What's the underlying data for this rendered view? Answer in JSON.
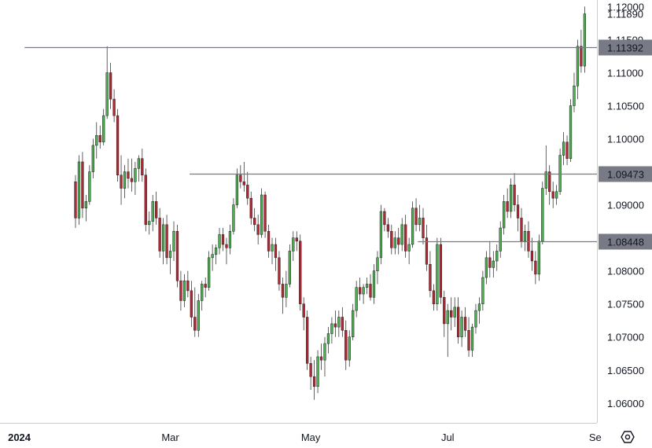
{
  "chart_data": {
    "type": "candlestick",
    "ylim": [
      1.057,
      1.121
    ],
    "xlim": [
      0,
      170
    ],
    "y_ticks": [
      "1.12000",
      "1.11500",
      "1.11000",
      "1.10500",
      "1.10000",
      "1.09500",
      "1.09000",
      "1.08500",
      "1.08000",
      "1.07500",
      "1.07000",
      "1.06500",
      "1.06000"
    ],
    "x_ticks": [
      {
        "label": "2024",
        "x": 8,
        "bold": true
      },
      {
        "label": "Mar",
        "x": 51,
        "bold": false
      },
      {
        "label": "May",
        "x": 91,
        "bold": false
      },
      {
        "label": "Jul",
        "x": 130,
        "bold": false
      },
      {
        "label": "Se",
        "x": 172,
        "bold": false
      }
    ],
    "last_price": "1.11890",
    "levels": [
      {
        "label": "1.11392",
        "value": 1.11392,
        "x_start": 7
      },
      {
        "label": "1.09473",
        "value": 1.09473,
        "x_start": 54
      },
      {
        "label": "1.08448",
        "value": 1.08448,
        "x_start": 119
      }
    ],
    "colors": {
      "up": "#4caf50",
      "down": "#b22833",
      "level_line": "#787b86",
      "label_bg": "#787b86"
    },
    "candles": [
      [
        1.0935,
        1.0945,
        1.0865,
        1.088
      ],
      [
        1.088,
        1.0975,
        1.087,
        1.0965
      ],
      [
        1.0965,
        1.098,
        1.088,
        1.0895
      ],
      [
        1.0895,
        1.0915,
        1.0875,
        1.0905
      ],
      [
        1.0905,
        1.096,
        1.09,
        1.095
      ],
      [
        1.095,
        1.1,
        1.094,
        1.099
      ],
      [
        1.099,
        1.1025,
        1.097,
        1.1005
      ],
      [
        1.1005,
        1.102,
        1.0985,
        1.0995
      ],
      [
        1.0995,
        1.1045,
        1.099,
        1.1035
      ],
      [
        1.1035,
        1.114,
        1.103,
        1.11
      ],
      [
        1.11,
        1.1115,
        1.1045,
        1.106
      ],
      [
        1.106,
        1.1075,
        1.1025,
        1.1035
      ],
      [
        1.1035,
        1.1045,
        1.0935,
        1.0945
      ],
      [
        1.0945,
        1.0975,
        1.09,
        1.0925
      ],
      [
        1.0925,
        1.096,
        1.091,
        1.095
      ],
      [
        1.095,
        1.097,
        1.0925,
        1.094
      ],
      [
        1.094,
        1.097,
        1.092,
        1.0935
      ],
      [
        1.0935,
        1.0965,
        1.0915,
        1.0955
      ],
      [
        1.0955,
        1.0975,
        1.0935,
        1.097
      ],
      [
        1.097,
        1.0985,
        1.0935,
        1.0945
      ],
      [
        1.0945,
        1.0955,
        1.086,
        1.087
      ],
      [
        1.087,
        1.089,
        1.0855,
        1.0875
      ],
      [
        1.0875,
        1.0915,
        1.086,
        1.0905
      ],
      [
        1.0905,
        1.092,
        1.087,
        1.088
      ],
      [
        1.088,
        1.0895,
        1.082,
        1.083
      ],
      [
        1.083,
        1.088,
        1.081,
        1.087
      ],
      [
        1.087,
        1.0885,
        1.081,
        1.082
      ],
      [
        1.082,
        1.084,
        1.0795,
        1.083
      ],
      [
        1.083,
        1.0875,
        1.0815,
        1.086
      ],
      [
        1.086,
        1.087,
        1.0775,
        1.0785
      ],
      [
        1.0785,
        1.08,
        1.074,
        1.0755
      ],
      [
        1.0755,
        1.0795,
        1.0745,
        1.0785
      ],
      [
        1.0785,
        1.08,
        1.076,
        1.077
      ],
      [
        1.077,
        1.0785,
        1.0715,
        1.073
      ],
      [
        1.073,
        1.0775,
        1.07,
        1.071
      ],
      [
        1.071,
        1.0765,
        1.07,
        1.0755
      ],
      [
        1.0755,
        1.0785,
        1.074,
        1.078
      ],
      [
        1.078,
        1.079,
        1.076,
        1.0775
      ],
      [
        1.0775,
        1.083,
        1.077,
        1.082
      ],
      [
        1.082,
        1.084,
        1.08,
        1.0825
      ],
      [
        1.0825,
        1.084,
        1.081,
        1.0835
      ],
      [
        1.0835,
        1.0865,
        1.0825,
        1.0855
      ],
      [
        1.0855,
        1.0865,
        1.083,
        1.084
      ],
      [
        1.084,
        1.085,
        1.081,
        1.0835
      ],
      [
        1.0835,
        1.087,
        1.0825,
        1.086
      ],
      [
        1.086,
        1.091,
        1.0855,
        1.09
      ],
      [
        1.09,
        1.0955,
        1.0895,
        1.0945
      ],
      [
        1.0945,
        1.096,
        1.0925,
        1.0935
      ],
      [
        1.0935,
        1.0965,
        1.092,
        1.093
      ],
      [
        1.093,
        1.095,
        1.09,
        1.091
      ],
      [
        1.091,
        1.092,
        1.087,
        1.088
      ],
      [
        1.088,
        1.0895,
        1.086,
        1.087
      ],
      [
        1.087,
        1.0885,
        1.084,
        1.0855
      ],
      [
        1.0855,
        1.0925,
        1.085,
        1.0915
      ],
      [
        1.0915,
        1.092,
        1.085,
        1.086
      ],
      [
        1.086,
        1.087,
        1.082,
        1.083
      ],
      [
        1.083,
        1.085,
        1.081,
        1.084
      ],
      [
        1.084,
        1.085,
        1.08,
        1.082
      ],
      [
        1.082,
        1.083,
        1.077,
        1.078
      ],
      [
        1.078,
        1.079,
        1.0735,
        1.076
      ],
      [
        1.076,
        1.08,
        1.0745,
        1.078
      ],
      [
        1.078,
        1.084,
        1.0775,
        1.083
      ],
      [
        1.083,
        1.086,
        1.0815,
        1.085
      ],
      [
        1.085,
        1.086,
        1.083,
        1.0845
      ],
      [
        1.0845,
        1.0855,
        1.074,
        1.075
      ],
      [
        1.075,
        1.076,
        1.071,
        1.073
      ],
      [
        1.073,
        1.074,
        1.065,
        1.066
      ],
      [
        1.066,
        1.067,
        1.062,
        1.064
      ],
      [
        1.064,
        1.0665,
        1.0605,
        1.0625
      ],
      [
        1.0625,
        1.068,
        1.0615,
        1.067
      ],
      [
        1.067,
        1.069,
        1.065,
        1.0665
      ],
      [
        1.0665,
        1.07,
        1.064,
        1.069
      ],
      [
        1.069,
        1.0715,
        1.0675,
        1.0705
      ],
      [
        1.0705,
        1.073,
        1.069,
        1.072
      ],
      [
        1.072,
        1.074,
        1.07,
        1.0715
      ],
      [
        1.0715,
        1.074,
        1.07,
        1.073
      ],
      [
        1.073,
        1.0745,
        1.07,
        1.071
      ],
      [
        1.071,
        1.0725,
        1.065,
        1.0665
      ],
      [
        1.0665,
        1.071,
        1.0655,
        1.07
      ],
      [
        1.07,
        1.075,
        1.0695,
        1.074
      ],
      [
        1.074,
        1.0785,
        1.073,
        1.0775
      ],
      [
        1.0775,
        1.079,
        1.0755,
        1.0765
      ],
      [
        1.0765,
        1.078,
        1.075,
        1.0775
      ],
      [
        1.0775,
        1.079,
        1.0765,
        1.078
      ],
      [
        1.078,
        1.0795,
        1.0755,
        1.076
      ],
      [
        1.076,
        1.081,
        1.075,
        1.08
      ],
      [
        1.08,
        1.083,
        1.078,
        1.082
      ],
      [
        1.082,
        1.09,
        1.081,
        1.089
      ],
      [
        1.089,
        1.0895,
        1.086,
        1.087
      ],
      [
        1.087,
        1.088,
        1.085,
        1.086
      ],
      [
        1.086,
        1.087,
        1.0825,
        1.0835
      ],
      [
        1.0835,
        1.086,
        1.0825,
        1.085
      ],
      [
        1.085,
        1.0865,
        1.0825,
        1.084
      ],
      [
        1.084,
        1.088,
        1.083,
        1.087
      ],
      [
        1.087,
        1.0885,
        1.082,
        1.083
      ],
      [
        1.083,
        1.085,
        1.081,
        1.084
      ],
      [
        1.084,
        1.0905,
        1.0835,
        1.0895
      ],
      [
        1.0895,
        1.091,
        1.086,
        1.087
      ],
      [
        1.087,
        1.09,
        1.086,
        1.088
      ],
      [
        1.088,
        1.0895,
        1.084,
        1.085
      ],
      [
        1.085,
        1.087,
        1.08,
        1.081
      ],
      [
        1.081,
        1.083,
        1.076,
        1.077
      ],
      [
        1.077,
        1.078,
        1.074,
        1.075
      ],
      [
        1.075,
        1.085,
        1.074,
        1.084
      ],
      [
        1.084,
        1.085,
        1.075,
        1.076
      ],
      [
        1.076,
        1.077,
        1.07,
        1.072
      ],
      [
        1.072,
        1.075,
        1.067,
        1.074
      ],
      [
        1.074,
        1.076,
        1.071,
        1.073
      ],
      [
        1.073,
        1.076,
        1.0715,
        1.0745
      ],
      [
        1.0745,
        1.076,
        1.069,
        1.07
      ],
      [
        1.07,
        1.074,
        1.0685,
        1.073
      ],
      [
        1.073,
        1.0745,
        1.07,
        1.071
      ],
      [
        1.071,
        1.073,
        1.067,
        1.068
      ],
      [
        1.068,
        1.072,
        1.067,
        1.0715
      ],
      [
        1.0715,
        1.075,
        1.0705,
        1.074
      ],
      [
        1.074,
        1.076,
        1.072,
        1.075
      ],
      [
        1.075,
        1.08,
        1.074,
        1.079
      ],
      [
        1.079,
        1.083,
        1.078,
        1.082
      ],
      [
        1.082,
        1.0845,
        1.079,
        1.0805
      ],
      [
        1.0805,
        1.083,
        1.079,
        1.0815
      ],
      [
        1.0815,
        1.084,
        1.08,
        1.083
      ],
      [
        1.083,
        1.0875,
        1.082,
        1.0865
      ],
      [
        1.0865,
        1.0915,
        1.0855,
        1.0905
      ],
      [
        1.0905,
        1.0925,
        1.088,
        1.089
      ],
      [
        1.089,
        1.094,
        1.088,
        1.093
      ],
      [
        1.093,
        1.0948,
        1.089,
        1.09
      ],
      [
        1.09,
        1.0915,
        1.086,
        1.088
      ],
      [
        1.088,
        1.0895,
        1.0835,
        1.0845
      ],
      [
        1.0845,
        1.087,
        1.083,
        1.086
      ],
      [
        1.086,
        1.0875,
        1.082,
        1.083
      ],
      [
        1.083,
        1.085,
        1.08,
        1.0815
      ],
      [
        1.0815,
        1.083,
        1.078,
        1.0795
      ],
      [
        1.0795,
        1.0855,
        1.0785,
        1.0845
      ],
      [
        1.0845,
        1.0935,
        1.084,
        1.0925
      ],
      [
        1.0925,
        1.099,
        1.0915,
        1.095
      ],
      [
        1.095,
        1.096,
        1.09,
        1.092
      ],
      [
        1.092,
        1.0935,
        1.0895,
        1.091
      ],
      [
        1.091,
        1.093,
        1.09,
        1.092
      ],
      [
        1.092,
        1.0985,
        1.0915,
        1.0975
      ],
      [
        1.0975,
        1.101,
        1.096,
        1.0995
      ],
      [
        1.0995,
        1.1005,
        1.096,
        1.097
      ],
      [
        1.097,
        1.106,
        1.0965,
        1.105
      ],
      [
        1.105,
        1.11,
        1.104,
        1.108
      ],
      [
        1.108,
        1.115,
        1.106,
        1.114
      ],
      [
        1.114,
        1.1165,
        1.11,
        1.111
      ],
      [
        1.111,
        1.12,
        1.11,
        1.1189
      ]
    ]
  }
}
